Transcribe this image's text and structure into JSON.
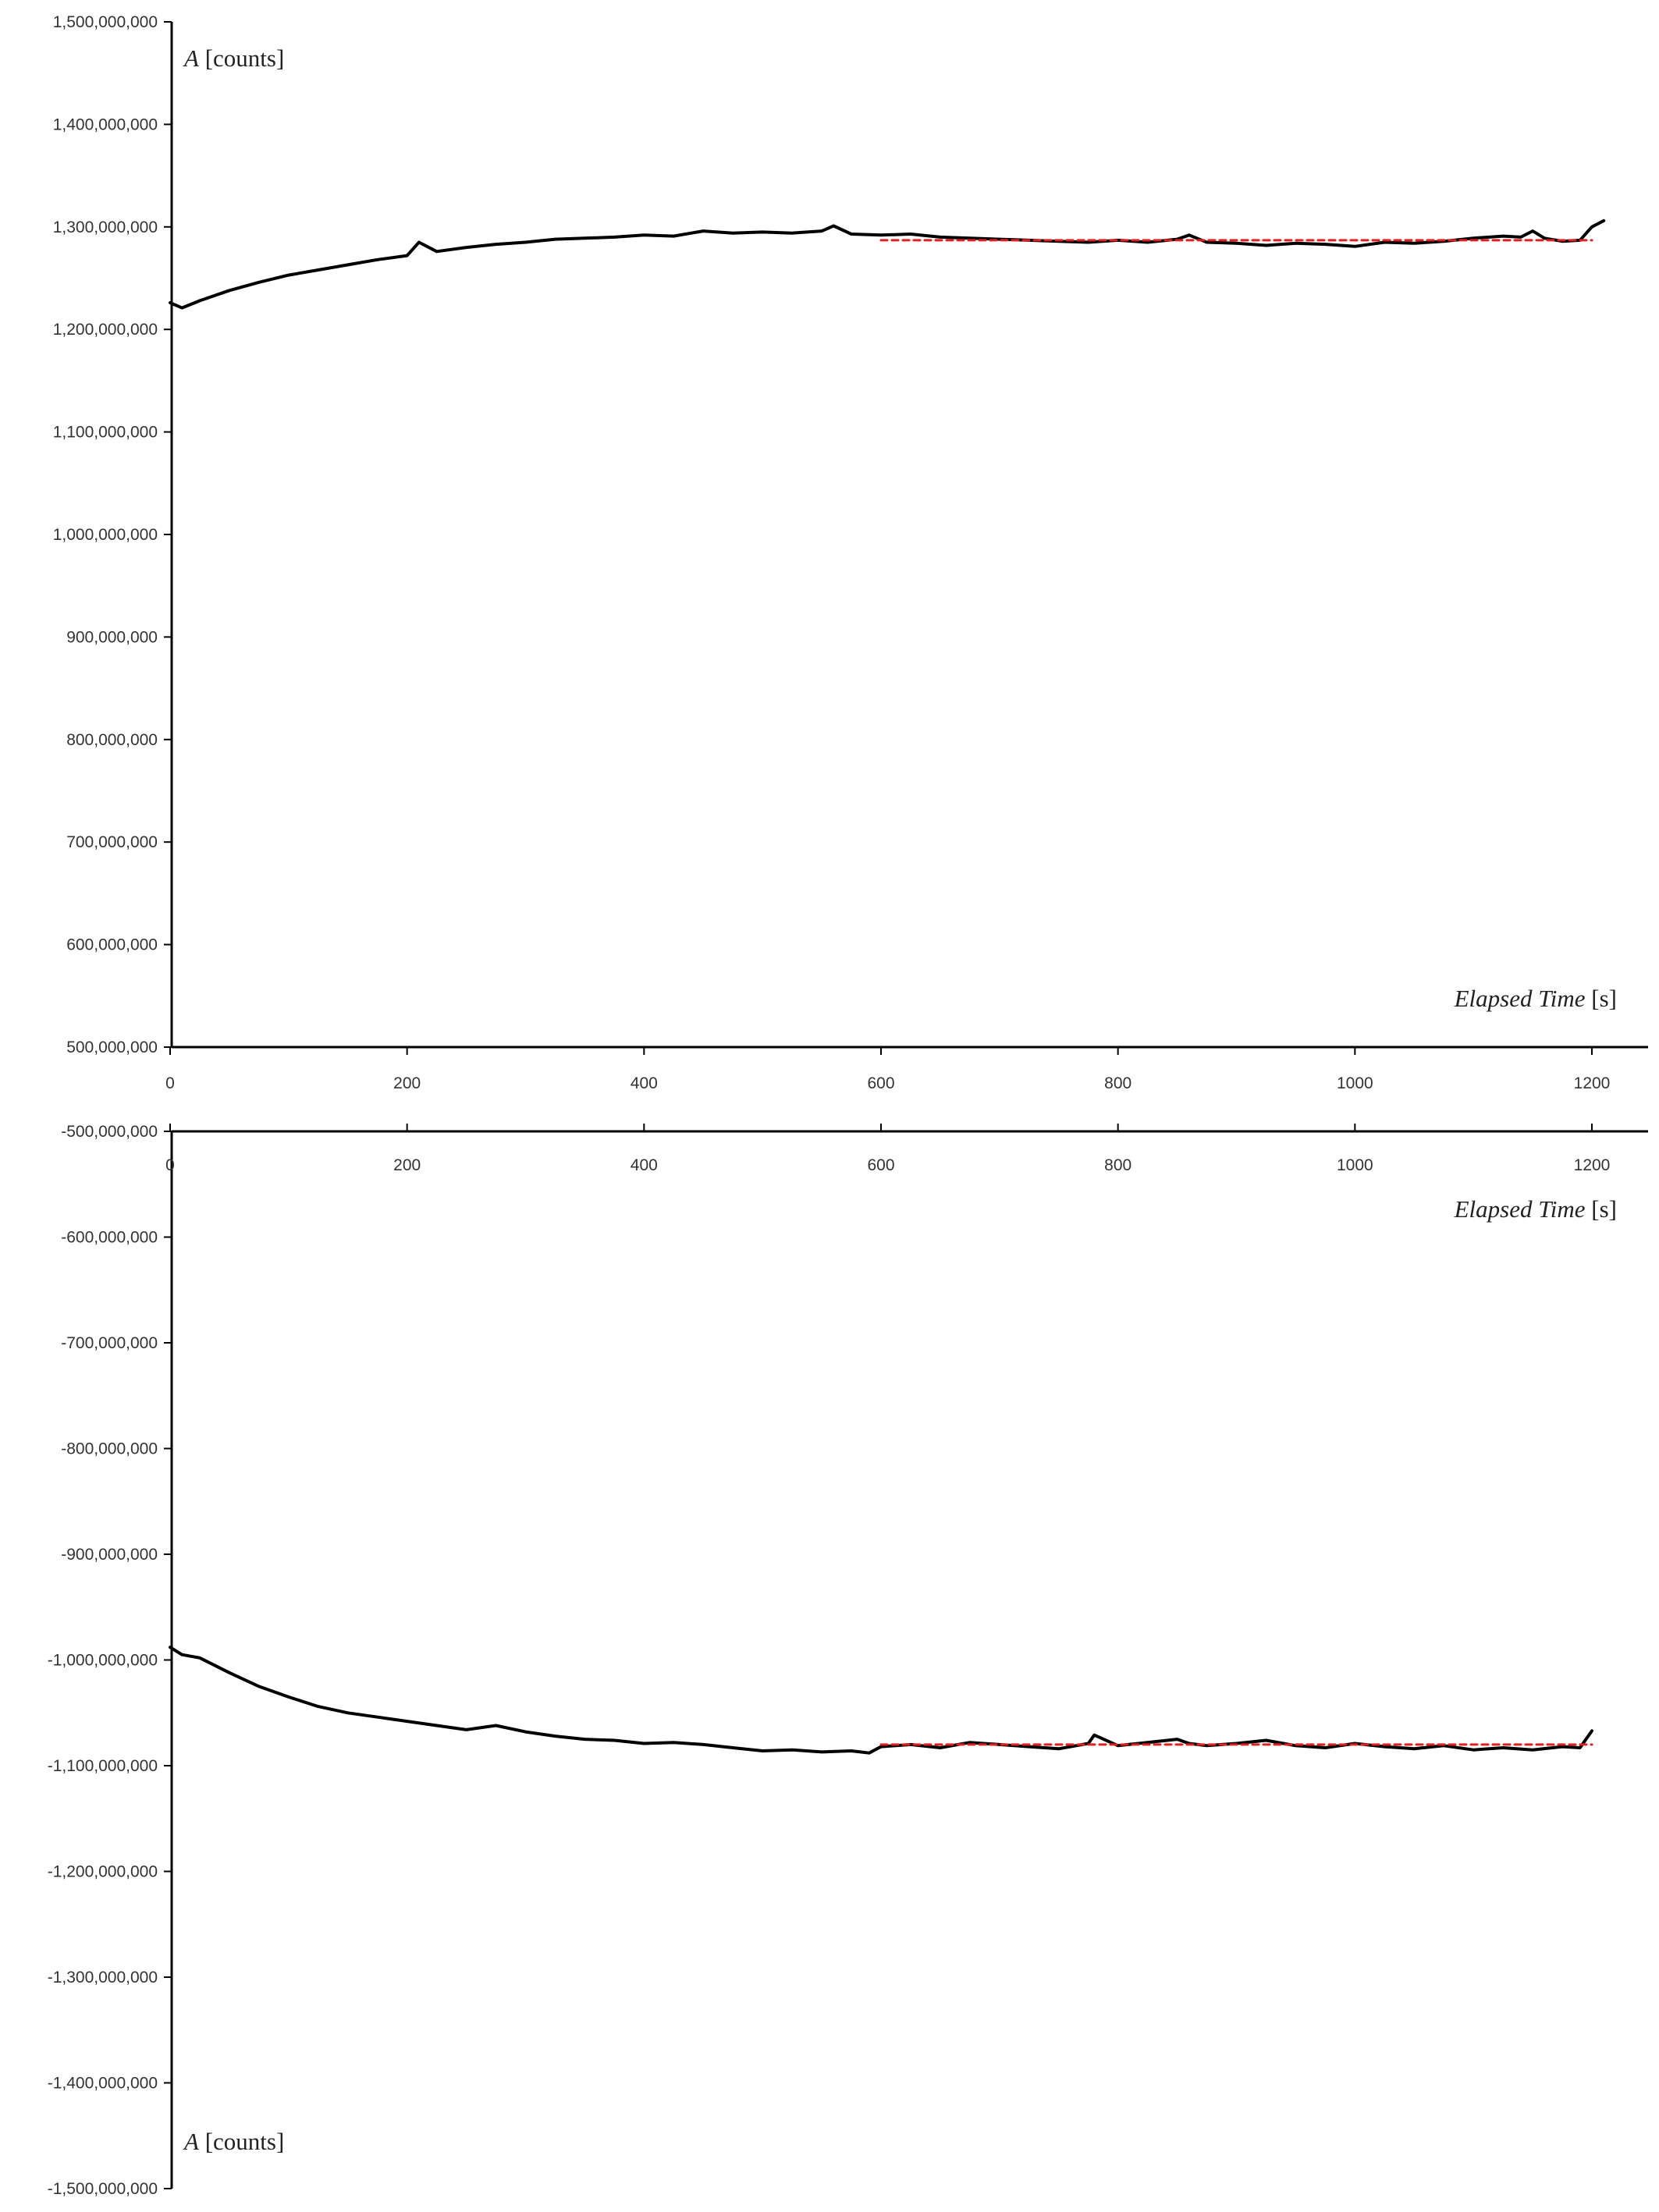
{
  "chart_data": [
    {
      "type": "line",
      "x_axis": {
        "label_italic": "Elapsed Time",
        "label_unit": " [s]",
        "ticks": [
          "0",
          "200",
          "400",
          "600",
          "800",
          "1000",
          "1200"
        ],
        "tick_values": [
          0,
          200,
          400,
          600,
          800,
          1000,
          1200
        ],
        "range": [
          0,
          1250
        ]
      },
      "y_axis": {
        "label_italic": "A",
        "label_unit": " [counts]",
        "ticks": [
          "500,000,000",
          "600,000,000",
          "700,000,000",
          "800,000,000",
          "900,000,000",
          "1,000,000,000",
          "1,100,000,000",
          "1,200,000,000",
          "1,300,000,000",
          "1,400,000,000",
          "1,500,000,000"
        ],
        "tick_values": [
          500000000,
          600000000,
          700000000,
          800000000,
          900000000,
          1000000000,
          1100000000,
          1200000000,
          1300000000,
          1400000000,
          1500000000
        ],
        "range": [
          500000000,
          1500000000
        ]
      },
      "series": [
        {
          "style": "solid",
          "color": "#000000",
          "x": [
            0,
            10,
            25,
            50,
            75,
            100,
            125,
            150,
            175,
            200,
            210,
            225,
            250,
            275,
            300,
            325,
            350,
            375,
            400,
            425,
            450,
            475,
            500,
            525,
            550,
            560,
            575,
            600,
            625,
            650,
            675,
            700,
            725,
            750,
            775,
            800,
            825,
            850,
            860,
            875,
            900,
            925,
            950,
            975,
            1000,
            1025,
            1050,
            1075,
            1100,
            1125,
            1140,
            1150,
            1160,
            1175,
            1190,
            1200,
            1210
          ],
          "y": [
            1226000000,
            1221000000,
            1228000000,
            1238000000,
            1246000000,
            1253000000,
            1258000000,
            1263000000,
            1268000000,
            1272000000,
            1285000000,
            1276000000,
            1280000000,
            1283000000,
            1285000000,
            1288000000,
            1289000000,
            1290000000,
            1292000000,
            1291000000,
            1296000000,
            1294000000,
            1295000000,
            1294000000,
            1296000000,
            1301000000,
            1293000000,
            1292000000,
            1293000000,
            1290000000,
            1289000000,
            1288000000,
            1287000000,
            1286000000,
            1285000000,
            1287000000,
            1285000000,
            1288000000,
            1292000000,
            1285000000,
            1284000000,
            1282000000,
            1284000000,
            1283000000,
            1281000000,
            1285000000,
            1284000000,
            1286000000,
            1289000000,
            1291000000,
            1290000000,
            1296000000,
            1289000000,
            1286000000,
            1287000000,
            1300000000,
            1306000000
          ]
        },
        {
          "style": "dashed",
          "color": "#e02020",
          "x": [
            600,
            1200
          ],
          "y": [
            1287000000,
            1287000000
          ]
        }
      ]
    },
    {
      "type": "line",
      "x_axis": {
        "label_italic": "Elapsed Time",
        "label_unit": " [s]",
        "ticks": [
          "0",
          "200",
          "400",
          "600",
          "800",
          "1000",
          "1200"
        ],
        "tick_values": [
          0,
          200,
          400,
          600,
          800,
          1000,
          1200
        ],
        "range": [
          0,
          1250
        ]
      },
      "y_axis": {
        "label_italic": "A",
        "label_unit": " [counts]",
        "ticks": [
          "-500,000,000",
          "-600,000,000",
          "-700,000,000",
          "-800,000,000",
          "-900,000,000",
          "-1,000,000,000",
          "-1,100,000,000",
          "-1,200,000,000",
          "-1,300,000,000",
          "-1,400,000,000",
          "-1,500,000,000"
        ],
        "tick_values": [
          -500000000,
          -600000000,
          -700000000,
          -800000000,
          -900000000,
          -1000000000,
          -1100000000,
          -1200000000,
          -1300000000,
          -1400000000,
          -1500000000
        ],
        "range": [
          -1500000000,
          -500000000
        ]
      },
      "series": [
        {
          "style": "solid",
          "color": "#000000",
          "x": [
            0,
            10,
            25,
            50,
            75,
            100,
            125,
            150,
            175,
            200,
            225,
            250,
            275,
            300,
            325,
            350,
            375,
            400,
            425,
            450,
            475,
            500,
            525,
            550,
            575,
            590,
            600,
            625,
            650,
            675,
            700,
            725,
            750,
            775,
            780,
            800,
            825,
            850,
            860,
            875,
            900,
            925,
            950,
            975,
            1000,
            1025,
            1050,
            1075,
            1100,
            1125,
            1150,
            1175,
            1190,
            1200
          ],
          "y": [
            -988000000,
            -995000000,
            -998000000,
            -1012000000,
            -1025000000,
            -1035000000,
            -1044000000,
            -1050000000,
            -1054000000,
            -1058000000,
            -1062000000,
            -1066000000,
            -1062000000,
            -1068000000,
            -1072000000,
            -1075000000,
            -1076000000,
            -1079000000,
            -1078000000,
            -1080000000,
            -1083000000,
            -1086000000,
            -1085000000,
            -1087000000,
            -1086000000,
            -1088000000,
            -1082000000,
            -1080000000,
            -1083000000,
            -1078000000,
            -1080000000,
            -1082000000,
            -1084000000,
            -1079000000,
            -1071000000,
            -1081000000,
            -1078000000,
            -1075000000,
            -1079000000,
            -1081000000,
            -1079000000,
            -1076000000,
            -1081000000,
            -1083000000,
            -1079000000,
            -1082000000,
            -1084000000,
            -1081000000,
            -1085000000,
            -1083000000,
            -1085000000,
            -1082000000,
            -1083000000,
            -1067000000
          ]
        },
        {
          "style": "dashed",
          "color": "#e02020",
          "x": [
            600,
            1200
          ],
          "y": [
            -1080000000,
            -1080000000
          ]
        }
      ]
    }
  ]
}
